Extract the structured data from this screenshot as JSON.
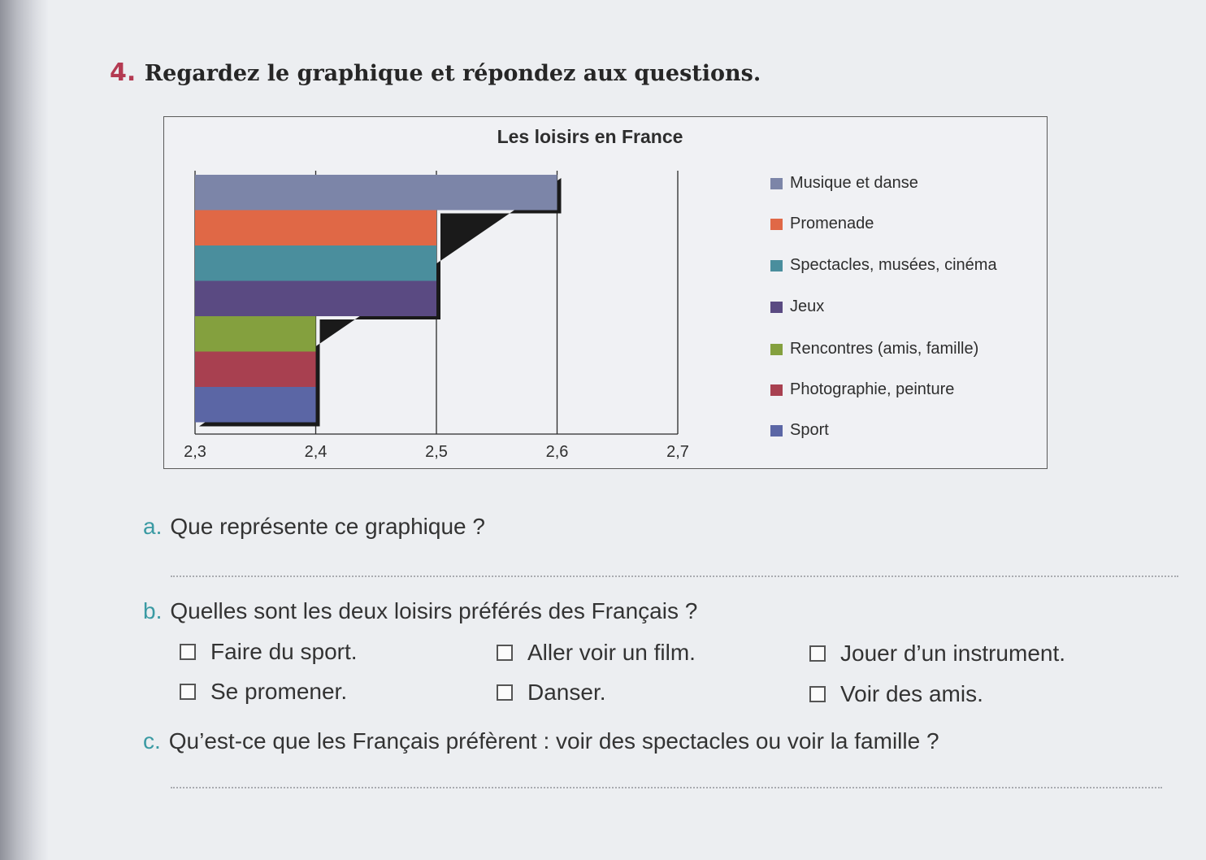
{
  "exercise": {
    "number": "4.",
    "title": "Regardez le graphique et répondez aux questions."
  },
  "chart_data": {
    "type": "bar",
    "orientation": "horizontal",
    "title": "Les loisirs en France",
    "xlabel": "",
    "ylabel": "",
    "xlim": [
      2.3,
      2.7
    ],
    "xticks": [
      "2,3",
      "2,4",
      "2,5",
      "2,6",
      "2,7"
    ],
    "grid": true,
    "legend_position": "right",
    "series": [
      {
        "name": "Musique et danse",
        "value": 2.6,
        "color": "#7c85a8"
      },
      {
        "name": "Promenade",
        "value": 2.5,
        "color": "#e06846"
      },
      {
        "name": "Spectacles, musées, cinéma",
        "value": 2.5,
        "color": "#4a8e9d"
      },
      {
        "name": "Jeux",
        "value": 2.5,
        "color": "#5a4a82"
      },
      {
        "name": "Rencontres (amis, famille)",
        "value": 2.4,
        "color": "#84a03e"
      },
      {
        "name": "Photographie, peinture",
        "value": 2.4,
        "color": "#a84050"
      },
      {
        "name": "Sport",
        "value": 2.4,
        "color": "#5b66a5"
      }
    ]
  },
  "questions": {
    "a": {
      "letter": "a.",
      "text": "Que représente ce graphique ?"
    },
    "b": {
      "letter": "b.",
      "text": "Quelles sont les deux loisirs préférés des Français ?",
      "options": [
        "Faire du sport.",
        "Aller voir un film.",
        "Jouer d’un instrument.",
        "Se promener.",
        "Danser.",
        "Voir des amis."
      ]
    },
    "c": {
      "letter": "c.",
      "text": "Qu’est-ce que les Français préfèrent : voir des spectacles ou voir la famille ?"
    }
  }
}
